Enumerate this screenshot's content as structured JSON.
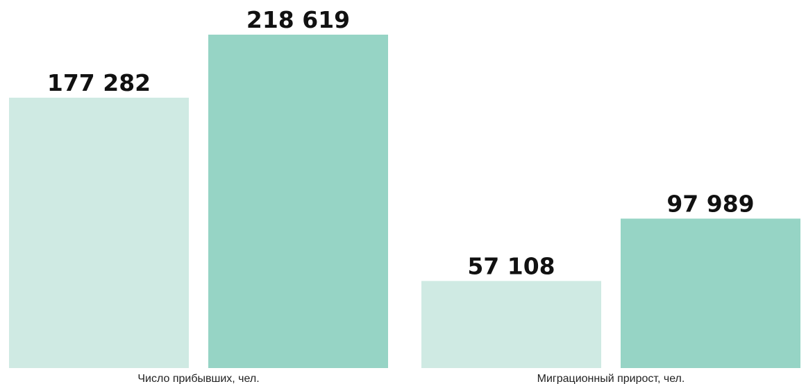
{
  "chart_data": {
    "type": "bar",
    "title": "",
    "xlabel": "",
    "ylabel": "",
    "categories": [
      "Число прибывших, чел.",
      "Миграционный прирост, чел."
    ],
    "series": [
      {
        "values": [
          177282,
          57108
        ],
        "value_labels": [
          "177 282",
          "57 108"
        ],
        "color": "#cfeae3"
      },
      {
        "values": [
          218619,
          97989
        ],
        "value_labels": [
          "218 619",
          "97 989"
        ],
        "color": "#96d4c5"
      }
    ],
    "ylim": [
      0,
      218619
    ],
    "grid": false,
    "legend": "none"
  }
}
